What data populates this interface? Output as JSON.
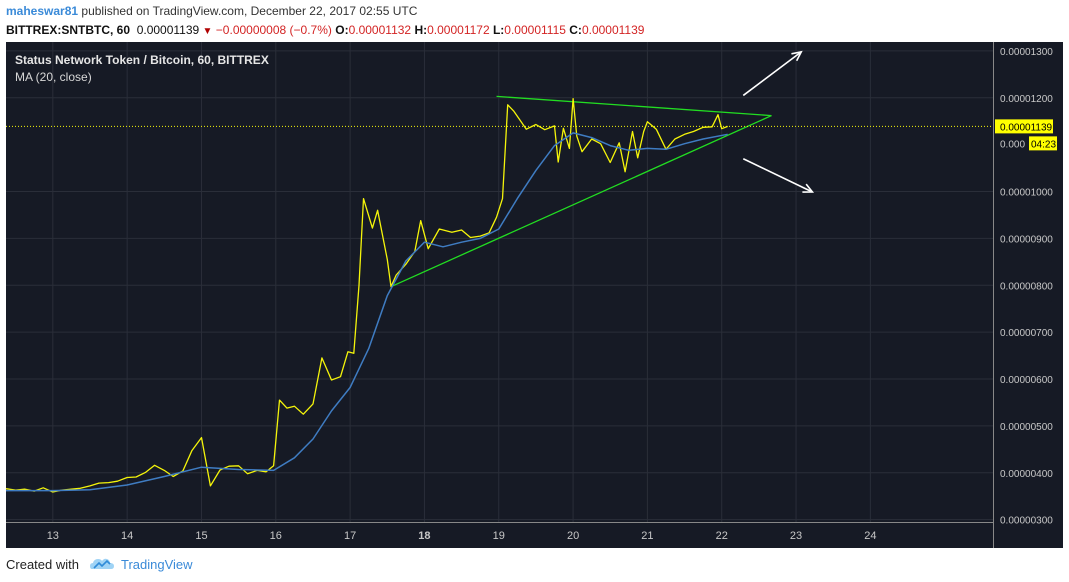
{
  "header": {
    "author": "maheswar81",
    "published_text": "published on TradingView.com, December 22, 2017 02:55 UTC",
    "symbol": "BITTREX:SNTBTC, 60",
    "last": "0.00001139",
    "change": "−0.00000008 (−0.7%)",
    "o_label": "O:",
    "o_value": "0.00001132",
    "h_label": "H:",
    "h_value": "0.00001172",
    "l_label": "L:",
    "l_value": "0.00001115",
    "c_label": "C:",
    "c_value": "0.00001139"
  },
  "chart_title": "Status Network Token / Bitcoin, 60, BITTREX",
  "indicator_label": "MA (20, close)",
  "price_label": "0.00001139",
  "countdown_label": "04:23",
  "partial_tick_label": "0.000",
  "footer": {
    "created_with": "Created with",
    "brand": "TradingView"
  },
  "colors": {
    "background": "#161a25",
    "grid": "#2a2e39",
    "price_line": "#f5f50a",
    "ma_line": "#3f7cc2",
    "trendline": "#22dd22",
    "arrows": "#ffffff",
    "axis_text": "#c8c8c8",
    "price_badge": "#ffff00"
  },
  "chart_data": {
    "type": "line",
    "title": "Status Network Token / Bitcoin, 60, BITTREX",
    "xlabel": "",
    "ylabel": "",
    "x_ticks": [
      {
        "x": 13,
        "label": "13"
      },
      {
        "x": 14,
        "label": "14"
      },
      {
        "x": 15,
        "label": "15"
      },
      {
        "x": 16,
        "label": "16"
      },
      {
        "x": 17,
        "label": "17"
      },
      {
        "x": 18,
        "label": "18",
        "bold": true
      },
      {
        "x": 19,
        "label": "19"
      },
      {
        "x": 20,
        "label": "20"
      },
      {
        "x": 21,
        "label": "21"
      },
      {
        "x": 22,
        "label": "22"
      },
      {
        "x": 23,
        "label": "23"
      },
      {
        "x": 24,
        "label": "24"
      }
    ],
    "xlim": [
      12.37,
      25.65
    ],
    "y_ticks": [
      3e-06,
      4e-06,
      5e-06,
      6e-06,
      7e-06,
      8e-06,
      9e-06,
      1e-05,
      1.2e-05,
      1.3e-05
    ],
    "y_tick_labels": [
      "0.00000300",
      "0.00000400",
      "0.00000500",
      "0.00000600",
      "0.00000700",
      "0.00000800",
      "0.00000900",
      "0.00001000",
      "0.00001200",
      "0.00001300"
    ],
    "ylim": [
      2.95e-06,
      1.319e-05
    ],
    "grid": true,
    "last_price": 1.139e-05,
    "series": [
      {
        "name": "Close",
        "points": [
          [
            12.37,
            3.66e-06
          ],
          [
            12.5,
            3.63e-06
          ],
          [
            12.62,
            3.65e-06
          ],
          [
            12.75,
            3.61e-06
          ],
          [
            12.87,
            3.68e-06
          ],
          [
            13.0,
            3.59e-06
          ],
          [
            13.12,
            3.63e-06
          ],
          [
            13.25,
            3.65e-06
          ],
          [
            13.37,
            3.67e-06
          ],
          [
            13.5,
            3.72e-06
          ],
          [
            13.62,
            3.78e-06
          ],
          [
            13.75,
            3.79e-06
          ],
          [
            13.87,
            3.82e-06
          ],
          [
            14.0,
            3.9e-06
          ],
          [
            14.12,
            3.91e-06
          ],
          [
            14.25,
            4.01e-06
          ],
          [
            14.37,
            4.16e-06
          ],
          [
            14.5,
            4.05e-06
          ],
          [
            14.62,
            3.92e-06
          ],
          [
            14.75,
            4.04e-06
          ],
          [
            14.87,
            4.47e-06
          ],
          [
            15.0,
            4.75e-06
          ],
          [
            15.12,
            3.72e-06
          ],
          [
            15.25,
            4.06e-06
          ],
          [
            15.37,
            4.14e-06
          ],
          [
            15.5,
            4.15e-06
          ],
          [
            15.62,
            3.98e-06
          ],
          [
            15.75,
            4.05e-06
          ],
          [
            15.87,
            4.02e-06
          ],
          [
            15.97,
            4.15e-06
          ],
          [
            16.05,
            5.55e-06
          ],
          [
            16.15,
            5.38e-06
          ],
          [
            16.25,
            5.42e-06
          ],
          [
            16.37,
            5.25e-06
          ],
          [
            16.5,
            5.47e-06
          ],
          [
            16.62,
            6.45e-06
          ],
          [
            16.75,
            5.98e-06
          ],
          [
            16.87,
            6.05e-06
          ],
          [
            16.97,
            6.58e-06
          ],
          [
            17.05,
            6.55e-06
          ],
          [
            17.12,
            8e-06
          ],
          [
            17.18,
            9.85e-06
          ],
          [
            17.3,
            9.22e-06
          ],
          [
            17.37,
            9.6e-06
          ],
          [
            17.5,
            8.55e-06
          ],
          [
            17.55,
            7.97e-06
          ],
          [
            17.62,
            8.22e-06
          ],
          [
            17.75,
            8.45e-06
          ],
          [
            17.87,
            8.72e-06
          ],
          [
            17.95,
            9.38e-06
          ],
          [
            18.05,
            8.78e-06
          ],
          [
            18.2,
            9.2e-06
          ],
          [
            18.37,
            9.13e-06
          ],
          [
            18.5,
            9.18e-06
          ],
          [
            18.62,
            9.02e-06
          ],
          [
            18.75,
            9.05e-06
          ],
          [
            18.87,
            9.12e-06
          ],
          [
            18.97,
            9.45e-06
          ],
          [
            19.05,
            9.85e-06
          ],
          [
            19.12,
            1.185e-05
          ],
          [
            19.2,
            1.172e-05
          ],
          [
            19.37,
            1.133e-05
          ],
          [
            19.5,
            1.143e-05
          ],
          [
            19.62,
            1.132e-05
          ],
          [
            19.75,
            1.14e-05
          ],
          [
            19.8,
            1.063e-05
          ],
          [
            19.87,
            1.135e-05
          ],
          [
            19.95,
            1.092e-05
          ],
          [
            20.0,
            1.198e-05
          ],
          [
            20.05,
            1.118e-05
          ],
          [
            20.12,
            1.085e-05
          ],
          [
            20.25,
            1.112e-05
          ],
          [
            20.37,
            1.102e-05
          ],
          [
            20.5,
            1.062e-05
          ],
          [
            20.62,
            1.104e-05
          ],
          [
            20.7,
            1.042e-05
          ],
          [
            20.8,
            1.128e-05
          ],
          [
            20.87,
            1.072e-05
          ],
          [
            20.95,
            1.128e-05
          ],
          [
            21.0,
            1.149e-05
          ],
          [
            21.12,
            1.133e-05
          ],
          [
            21.25,
            1.09e-05
          ],
          [
            21.37,
            1.112e-05
          ],
          [
            21.5,
            1.122e-05
          ],
          [
            21.62,
            1.128e-05
          ],
          [
            21.75,
            1.137e-05
          ],
          [
            21.87,
            1.138e-05
          ],
          [
            21.95,
            1.164e-05
          ],
          [
            22.0,
            1.134e-05
          ],
          [
            22.08,
            1.139e-05
          ]
        ]
      },
      {
        "name": "MA (20, close)",
        "points": [
          [
            12.37,
            3.62e-06
          ],
          [
            12.75,
            3.62e-06
          ],
          [
            13.0,
            3.62e-06
          ],
          [
            13.5,
            3.64e-06
          ],
          [
            14.0,
            3.74e-06
          ],
          [
            14.5,
            3.92e-06
          ],
          [
            15.0,
            4.12e-06
          ],
          [
            15.5,
            4.07e-06
          ],
          [
            15.97,
            4.05e-06
          ],
          [
            16.25,
            4.32e-06
          ],
          [
            16.5,
            4.72e-06
          ],
          [
            16.75,
            5.32e-06
          ],
          [
            17.0,
            5.82e-06
          ],
          [
            17.25,
            6.65e-06
          ],
          [
            17.5,
            7.78e-06
          ],
          [
            17.75,
            8.52e-06
          ],
          [
            18.0,
            8.92e-06
          ],
          [
            18.25,
            8.82e-06
          ],
          [
            18.5,
            8.92e-06
          ],
          [
            18.75,
            9e-06
          ],
          [
            19.0,
            9.2e-06
          ],
          [
            19.25,
            9.85e-06
          ],
          [
            19.5,
            1.045e-05
          ],
          [
            19.75,
            1.098e-05
          ],
          [
            20.0,
            1.125e-05
          ],
          [
            20.25,
            1.115e-05
          ],
          [
            20.5,
            1.098e-05
          ],
          [
            20.75,
            1.088e-05
          ],
          [
            21.0,
            1.092e-05
          ],
          [
            21.25,
            1.09e-05
          ],
          [
            21.5,
            1.102e-05
          ],
          [
            21.75,
            1.112e-05
          ],
          [
            22.08,
            1.122e-05
          ]
        ]
      }
    ],
    "annotations": [
      {
        "type": "trendline",
        "from": [
          18.97,
          1.203e-05
        ],
        "to": [
          22.67,
          1.162e-05
        ]
      },
      {
        "type": "trendline",
        "from": [
          17.55,
          7.97e-06
        ],
        "to": [
          22.67,
          1.162e-05
        ]
      },
      {
        "type": "arrow",
        "from": [
          22.29,
          1.205e-05
        ],
        "to": [
          23.07,
          1.298e-05
        ]
      },
      {
        "type": "arrow",
        "from": [
          22.29,
          1.07e-05
        ],
        "to": [
          23.22,
          9.99e-06
        ]
      }
    ]
  }
}
